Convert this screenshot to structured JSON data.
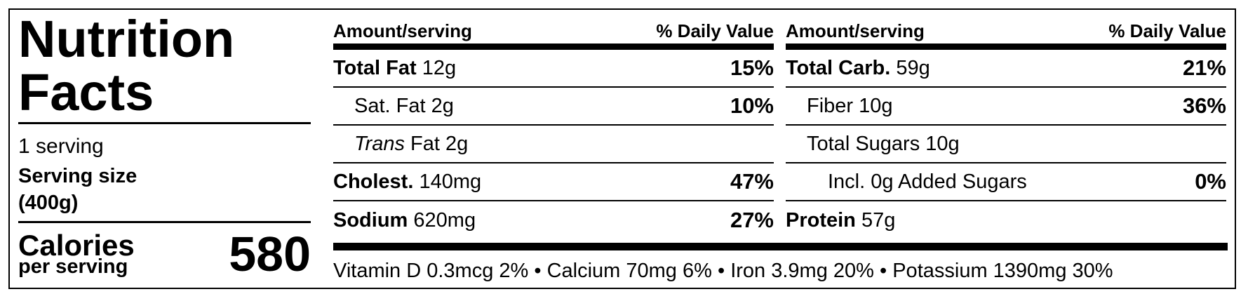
{
  "title": "Nutrition Facts",
  "servings": "1 serving",
  "serving_size": "Serving size (400g)",
  "calories": {
    "label": "Calories",
    "sublabel": "per serving",
    "value": "580"
  },
  "columns": [
    {
      "header_left": "Amount/serving",
      "header_right": "% Daily Value",
      "rows": [
        {
          "label": "Total Fat",
          "bold": true,
          "amount": "12g",
          "dv": "15%"
        },
        {
          "label": "Sat. Fat",
          "indent": 1,
          "amount": "2g",
          "dv": "10%"
        },
        {
          "label_italic": "Trans",
          "label": "Fat",
          "indent": 1,
          "amount": "2g"
        },
        {
          "label": "Cholest.",
          "bold": true,
          "amount": "140mg",
          "dv": "47%"
        },
        {
          "label": "Sodium",
          "bold": true,
          "amount": "620mg",
          "dv": "27%"
        }
      ]
    },
    {
      "header_left": "Amount/serving",
      "header_right": "% Daily Value",
      "rows": [
        {
          "label": "Total Carb.",
          "bold": true,
          "amount": "59g",
          "dv": "21%"
        },
        {
          "label": "Fiber",
          "indent": 1,
          "amount": "10g",
          "dv": "36%"
        },
        {
          "label": "Total Sugars",
          "indent": 1,
          "amount": "10g"
        },
        {
          "label": "Incl. 0g Added Sugars",
          "indent": 2,
          "dv": "0%"
        },
        {
          "label": "Protein",
          "bold": true,
          "amount": "57g"
        }
      ]
    }
  ],
  "footer": {
    "separator": "•",
    "items": [
      "Vitamin D 0.3mcg 2%",
      "Calcium 70mg 6%",
      "Iron 3.9mg 20%",
      "Potassium 1390mg 30%"
    ]
  }
}
